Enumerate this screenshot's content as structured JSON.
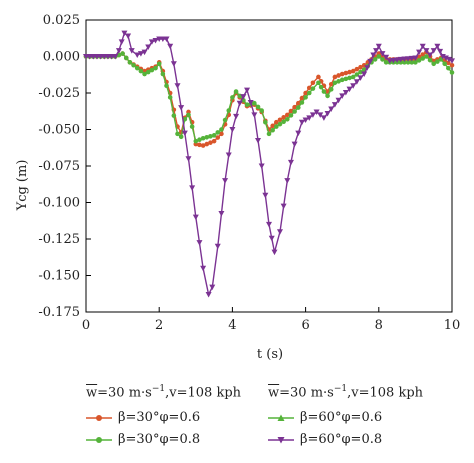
{
  "chart_data": {
    "type": "line",
    "ylabel": "Ycg (m)",
    "xlabel": "t (s)",
    "xlim": [
      0,
      10
    ],
    "ylim": [
      -0.175,
      0.025
    ],
    "xticks": [
      "0",
      "2",
      "4",
      "6",
      "8",
      "10"
    ],
    "yticks": [
      "0.025",
      "0.000",
      "-0.025",
      "-0.050",
      "-0.075",
      "-0.100",
      "-0.125",
      "-0.150",
      "-0.175"
    ],
    "grid": false,
    "legend_placement": "bottom",
    "legend_groups": [
      {
        "title_w": "w",
        "title_rest": "=30 m·s",
        "title_sup": "−1",
        "title_tail": ",v=108 kph"
      },
      {
        "title_w": "w",
        "title_rest": "=30 m·s",
        "title_sup": "−1",
        "title_tail": ",v=108 kph"
      }
    ],
    "series": [
      {
        "name": "β=30°φ=0.6",
        "color": "#d9562b",
        "marker": "circle",
        "legend_group": 0,
        "points": [
          [
            0,
            0
          ],
          [
            0.8,
            0
          ],
          [
            1.0,
            0.002
          ],
          [
            1.2,
            -0.004
          ],
          [
            1.6,
            -0.01
          ],
          [
            1.9,
            -0.007
          ],
          [
            2.0,
            -0.004
          ],
          [
            2.1,
            -0.01
          ],
          [
            2.3,
            -0.025
          ],
          [
            2.5,
            -0.048
          ],
          [
            2.6,
            -0.052
          ],
          [
            2.7,
            -0.042
          ],
          [
            2.8,
            -0.038
          ],
          [
            2.9,
            -0.045
          ],
          [
            3.0,
            -0.06
          ],
          [
            3.2,
            -0.061
          ],
          [
            3.5,
            -0.058
          ],
          [
            3.7,
            -0.053
          ],
          [
            3.9,
            -0.04
          ],
          [
            4.0,
            -0.03
          ],
          [
            4.1,
            -0.025
          ],
          [
            4.2,
            -0.028
          ],
          [
            4.4,
            -0.034
          ],
          [
            4.6,
            -0.033
          ],
          [
            4.8,
            -0.038
          ],
          [
            5.0,
            -0.05
          ],
          [
            5.2,
            -0.045
          ],
          [
            5.5,
            -0.04
          ],
          [
            5.8,
            -0.032
          ],
          [
            6.0,
            -0.025
          ],
          [
            6.2,
            -0.018
          ],
          [
            6.35,
            -0.014
          ],
          [
            6.5,
            -0.02
          ],
          [
            6.6,
            -0.024
          ],
          [
            6.8,
            -0.014
          ],
          [
            7.0,
            -0.012
          ],
          [
            7.3,
            -0.01
          ],
          [
            7.6,
            -0.006
          ],
          [
            7.8,
            -0.002
          ],
          [
            8.0,
            0.002
          ],
          [
            8.2,
            -0.002
          ],
          [
            8.6,
            -0.002
          ],
          [
            9.0,
            -0.002
          ],
          [
            9.3,
            0.003
          ],
          [
            9.5,
            -0.003
          ],
          [
            9.7,
            -0.001
          ],
          [
            10,
            -0.006
          ]
        ]
      },
      {
        "name": "β=30°φ=0.8",
        "color": "#55b33a",
        "marker": "circle",
        "legend_group": 0,
        "points": [
          [
            0,
            0
          ],
          [
            0.8,
            0
          ],
          [
            1.0,
            0.002
          ],
          [
            1.2,
            -0.004
          ],
          [
            1.6,
            -0.012
          ],
          [
            1.9,
            -0.008
          ],
          [
            2.0,
            -0.005
          ],
          [
            2.1,
            -0.012
          ],
          [
            2.3,
            -0.028
          ],
          [
            2.5,
            -0.053
          ],
          [
            2.6,
            -0.055
          ],
          [
            2.7,
            -0.043
          ],
          [
            2.8,
            -0.04
          ],
          [
            2.9,
            -0.048
          ],
          [
            3.0,
            -0.058
          ],
          [
            3.2,
            -0.056
          ],
          [
            3.5,
            -0.054
          ],
          [
            3.7,
            -0.05
          ],
          [
            3.9,
            -0.037
          ],
          [
            4.0,
            -0.028
          ],
          [
            4.1,
            -0.024
          ],
          [
            4.2,
            -0.027
          ],
          [
            4.4,
            -0.033
          ],
          [
            4.6,
            -0.032
          ],
          [
            4.8,
            -0.037
          ],
          [
            5.0,
            -0.053
          ],
          [
            5.2,
            -0.048
          ],
          [
            5.5,
            -0.043
          ],
          [
            5.8,
            -0.035
          ],
          [
            6.0,
            -0.028
          ],
          [
            6.2,
            -0.022
          ],
          [
            6.35,
            -0.018
          ],
          [
            6.5,
            -0.024
          ],
          [
            6.6,
            -0.027
          ],
          [
            6.8,
            -0.018
          ],
          [
            7.0,
            -0.016
          ],
          [
            7.3,
            -0.014
          ],
          [
            7.6,
            -0.009
          ],
          [
            7.8,
            -0.004
          ],
          [
            8.0,
            0.0
          ],
          [
            8.2,
            -0.004
          ],
          [
            8.6,
            -0.004
          ],
          [
            9.0,
            -0.004
          ],
          [
            9.3,
            0.0
          ],
          [
            9.5,
            -0.005
          ],
          [
            9.7,
            -0.002
          ],
          [
            10,
            -0.011
          ]
        ]
      },
      {
        "name": "β=60°φ=0.6",
        "color": "#55b33a",
        "marker": "triangle-up",
        "legend_group": 1,
        "points": []
      },
      {
        "name": "β=60°φ=0.8",
        "color": "#7b3393",
        "marker": "triangle-down",
        "legend_group": 1,
        "points": [
          [
            0,
            0
          ],
          [
            0.8,
            0
          ],
          [
            0.9,
            0.004
          ],
          [
            1.05,
            0.016
          ],
          [
            1.15,
            0.014
          ],
          [
            1.25,
            0.004
          ],
          [
            1.4,
            0.001
          ],
          [
            1.6,
            0.003
          ],
          [
            1.8,
            0.01
          ],
          [
            2.0,
            0.012
          ],
          [
            2.2,
            0.012
          ],
          [
            2.3,
            0.007
          ],
          [
            2.4,
            -0.005
          ],
          [
            2.6,
            -0.035
          ],
          [
            2.8,
            -0.07
          ],
          [
            3.0,
            -0.11
          ],
          [
            3.2,
            -0.145
          ],
          [
            3.35,
            -0.163
          ],
          [
            3.45,
            -0.158
          ],
          [
            3.6,
            -0.13
          ],
          [
            3.8,
            -0.085
          ],
          [
            4.0,
            -0.05
          ],
          [
            4.2,
            -0.032
          ],
          [
            4.4,
            -0.023
          ],
          [
            4.6,
            -0.04
          ],
          [
            4.8,
            -0.075
          ],
          [
            5.0,
            -0.115
          ],
          [
            5.15,
            -0.134
          ],
          [
            5.3,
            -0.12
          ],
          [
            5.5,
            -0.085
          ],
          [
            5.7,
            -0.06
          ],
          [
            5.9,
            -0.045
          ],
          [
            6.1,
            -0.042
          ],
          [
            6.3,
            -0.038
          ],
          [
            6.5,
            -0.042
          ],
          [
            6.7,
            -0.036
          ],
          [
            7.0,
            -0.027
          ],
          [
            7.3,
            -0.02
          ],
          [
            7.6,
            -0.012
          ],
          [
            7.85,
            0.001
          ],
          [
            8.0,
            0.007
          ],
          [
            8.1,
            0.002
          ],
          [
            8.3,
            -0.003
          ],
          [
            8.6,
            -0.002
          ],
          [
            9.0,
            -0.001
          ],
          [
            9.2,
            0.007
          ],
          [
            9.4,
            0.001
          ],
          [
            9.6,
            0.007
          ],
          [
            9.75,
            0.0
          ],
          [
            10,
            -0.003
          ]
        ]
      }
    ]
  }
}
